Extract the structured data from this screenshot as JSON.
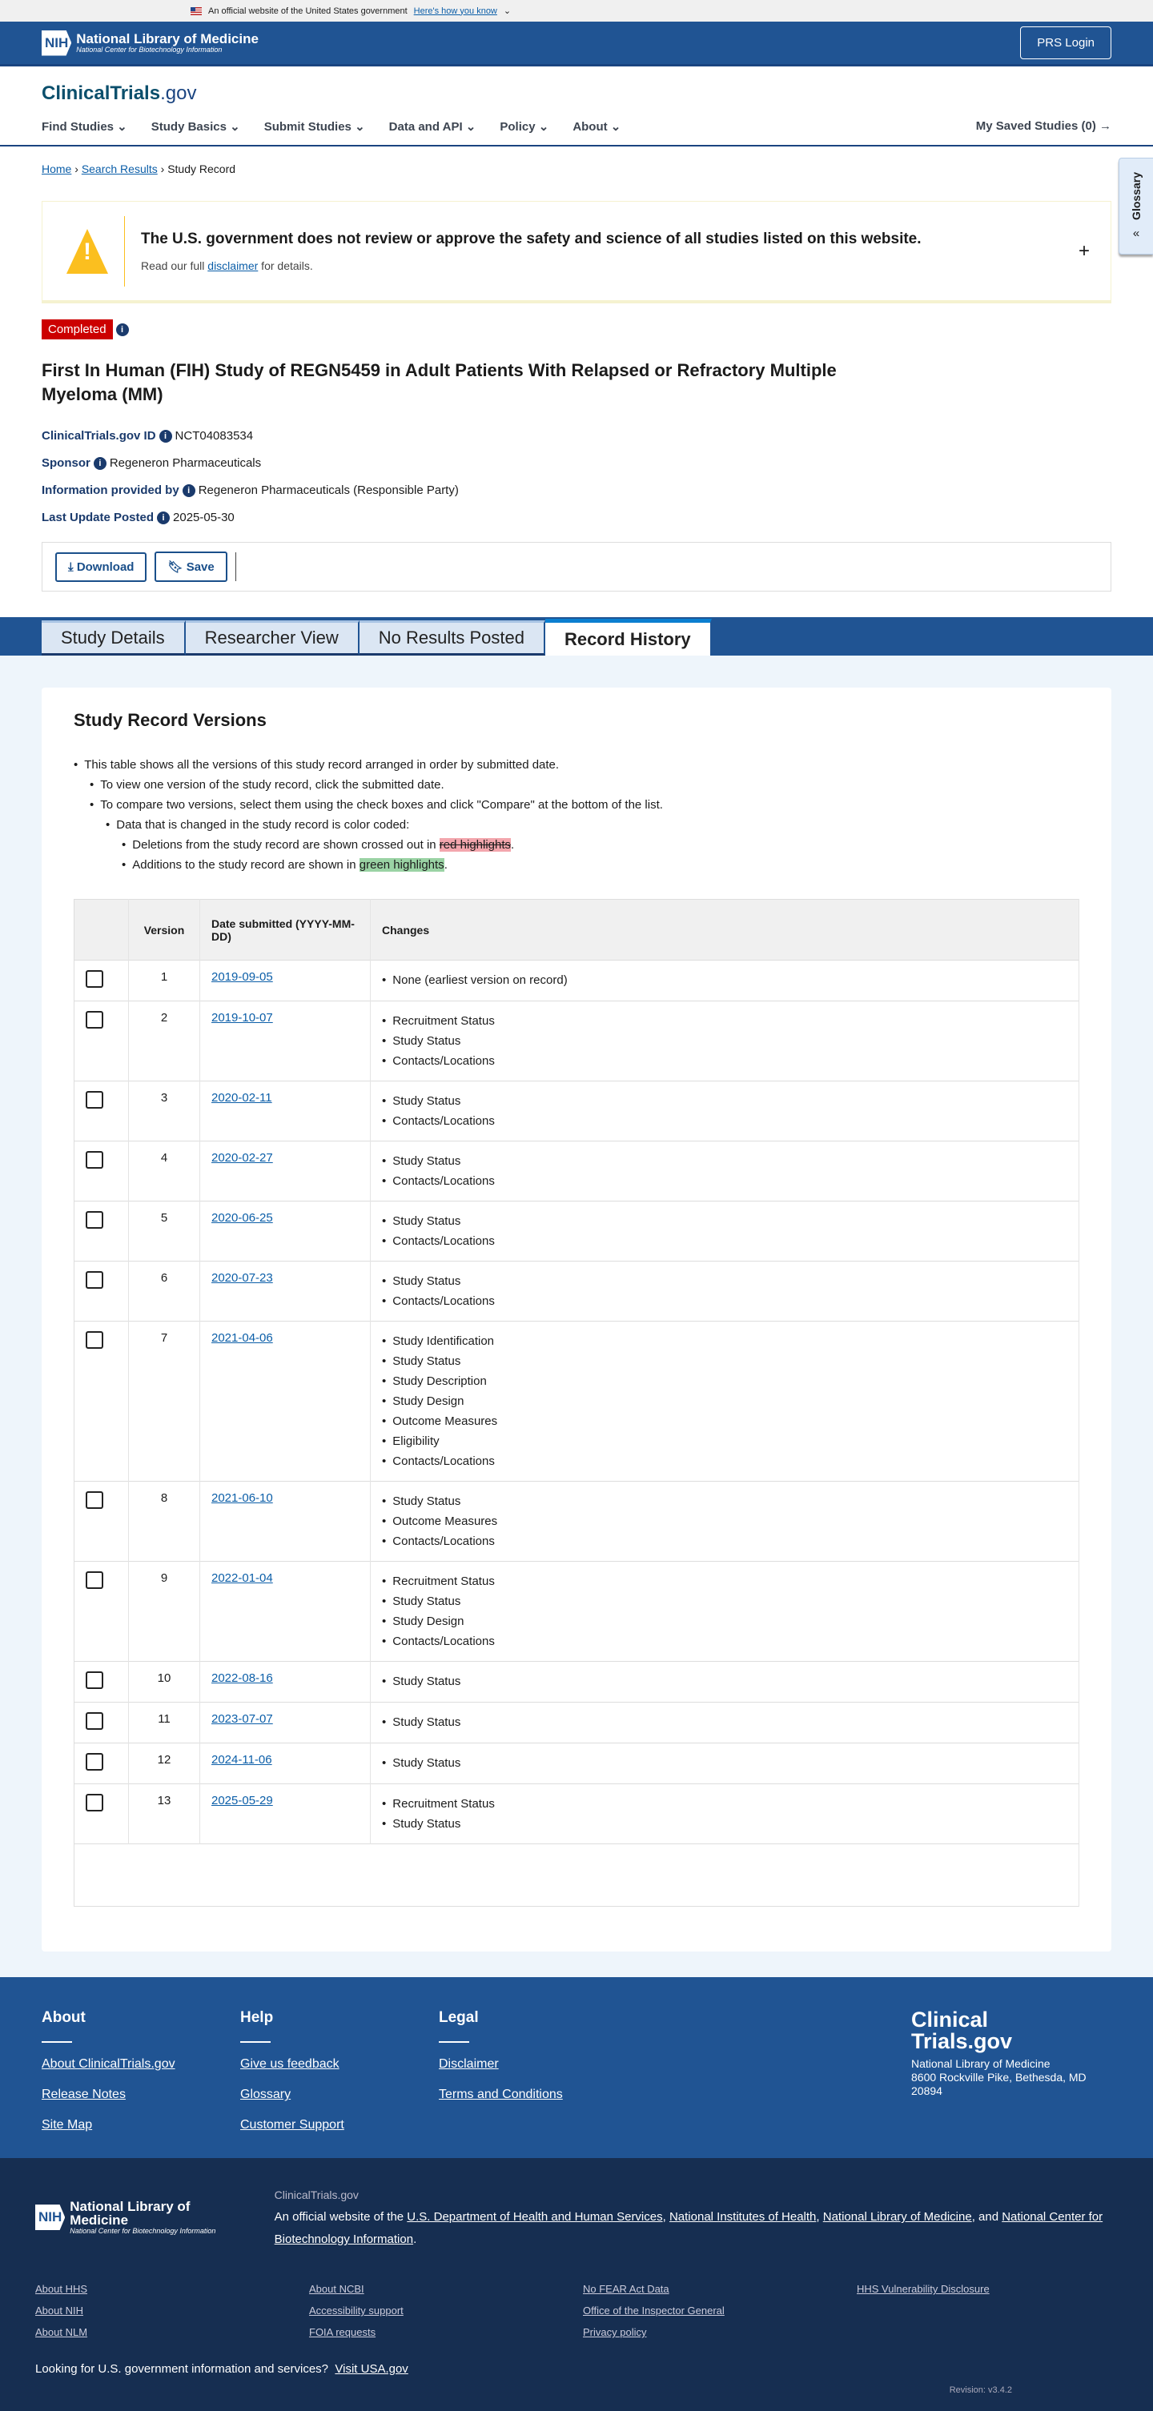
{
  "gov_banner": {
    "text": "An official website of the United States government",
    "link": "Here's how you know"
  },
  "header": {
    "nih": "NIH",
    "org": "National Library of Medicine",
    "sub": "National Center for Biotechnology Information",
    "prs_login": "PRS Login"
  },
  "brand": {
    "main": "ClinicalTrials",
    "suffix": ".gov"
  },
  "nav": {
    "items": [
      "Find Studies",
      "Study Basics",
      "Submit Studies",
      "Data and API",
      "Policy",
      "About"
    ],
    "saved": "My Saved Studies (0)"
  },
  "breadcrumb": [
    "Home",
    "Search Results",
    "Study Record"
  ],
  "glossary": "Glossary",
  "alert": {
    "title": "The U.S. government does not review or approve the safety and science of all studies listed on this website.",
    "pre": "Read our full ",
    "link": "disclaimer",
    "post": " for details."
  },
  "study": {
    "status": "Completed",
    "title": "First In Human (FIH) Study of REGN5459 in Adult Patients With Relapsed or Refractory Multiple Myeloma (MM)",
    "fields": [
      {
        "label": "ClinicalTrials.gov ID",
        "value": "NCT04083534"
      },
      {
        "label": "Sponsor",
        "value": "Regeneron Pharmaceuticals"
      },
      {
        "label": "Information provided by",
        "value": "Regeneron Pharmaceuticals (Responsible Party)"
      },
      {
        "label": "Last Update Posted",
        "value": "2025-05-30"
      }
    ]
  },
  "actions": {
    "download": "Download",
    "save": "Save"
  },
  "tabs": [
    "Study Details",
    "Researcher View",
    "No Results Posted",
    "Record History"
  ],
  "active_tab": "Record History",
  "versions": {
    "heading": "Study Record Versions",
    "intro": "This table shows all the versions of this study record arranged in order by submitted date.",
    "view": "To view one version of the study record, click the submitted date.",
    "compare": "To compare two versions, select them using the check boxes and click \"Compare\" at the bottom of the list.",
    "color": "Data that is changed in the study record is color coded:",
    "del_pre": "Deletions from the study record are shown crossed out in ",
    "del_hl": "red highlights",
    "add_pre": "Additions to the study record are shown in ",
    "add_hl": "green highlights",
    "columns": [
      "Version",
      "Date submitted (YYYY-MM-DD)",
      "Changes"
    ],
    "rows": [
      {
        "version": "1",
        "date": "2019-09-05",
        "changes": [
          "None (earliest version on record)"
        ]
      },
      {
        "version": "2",
        "date": "2019-10-07",
        "changes": [
          "Recruitment Status",
          "Study Status",
          "Contacts/Locations"
        ]
      },
      {
        "version": "3",
        "date": "2020-02-11",
        "changes": [
          "Study Status",
          "Contacts/Locations"
        ]
      },
      {
        "version": "4",
        "date": "2020-02-27",
        "changes": [
          "Study Status",
          "Contacts/Locations"
        ]
      },
      {
        "version": "5",
        "date": "2020-06-25",
        "changes": [
          "Study Status",
          "Contacts/Locations"
        ]
      },
      {
        "version": "6",
        "date": "2020-07-23",
        "changes": [
          "Study Status",
          "Contacts/Locations"
        ]
      },
      {
        "version": "7",
        "date": "2021-04-06",
        "changes": [
          "Study Identification",
          "Study Status",
          "Study Description",
          "Study Design",
          "Outcome Measures",
          "Eligibility",
          "Contacts/Locations"
        ]
      },
      {
        "version": "8",
        "date": "2021-06-10",
        "changes": [
          "Study Status",
          "Outcome Measures",
          "Contacts/Locations"
        ]
      },
      {
        "version": "9",
        "date": "2022-01-04",
        "changes": [
          "Recruitment Status",
          "Study Status",
          "Study Design",
          "Contacts/Locations"
        ]
      },
      {
        "version": "10",
        "date": "2022-08-16",
        "changes": [
          "Study Status"
        ]
      },
      {
        "version": "11",
        "date": "2023-07-07",
        "changes": [
          "Study Status"
        ]
      },
      {
        "version": "12",
        "date": "2024-11-06",
        "changes": [
          "Study Status"
        ]
      },
      {
        "version": "13",
        "date": "2025-05-29",
        "changes": [
          "Recruitment Status",
          "Study Status"
        ]
      }
    ]
  },
  "footer": {
    "cols": [
      {
        "title": "About",
        "links": [
          "About ClinicalTrials.gov",
          "Release Notes",
          "Site Map"
        ]
      },
      {
        "title": "Help",
        "links": [
          "Give us feedback",
          "Glossary",
          "Customer Support"
        ]
      },
      {
        "title": "Legal",
        "links": [
          "Disclaimer",
          "Terms and Conditions"
        ]
      }
    ],
    "brand1": "Clinical",
    "brand2": "Trials.gov",
    "addr1": "National Library of Medicine",
    "addr2": "8600 Rockville Pike, Bethesda, MD",
    "addr3": "20894",
    "site": "ClinicalTrials.gov",
    "official_pre": "An official website of the ",
    "hhs": "U.S. Department of Health and Human Services",
    "nih": "National Institutes of Health",
    "nlm": "National Library of Medicine",
    "and": ", and ",
    "ncbi": "National Center for Biotechnology Information",
    "links": [
      "About HHS",
      "About NCBI",
      "No FEAR Act Data",
      "HHS Vulnerability Disclosure",
      "About NIH",
      "Accessibility support",
      "Office of the Inspector General",
      "",
      "About NLM",
      "FOIA requests",
      "Privacy policy",
      ""
    ],
    "usa_q": "Looking for U.S. government information and services?",
    "usa_link": "Visit USA.gov",
    "revision": "Revision: v3.4.2"
  }
}
